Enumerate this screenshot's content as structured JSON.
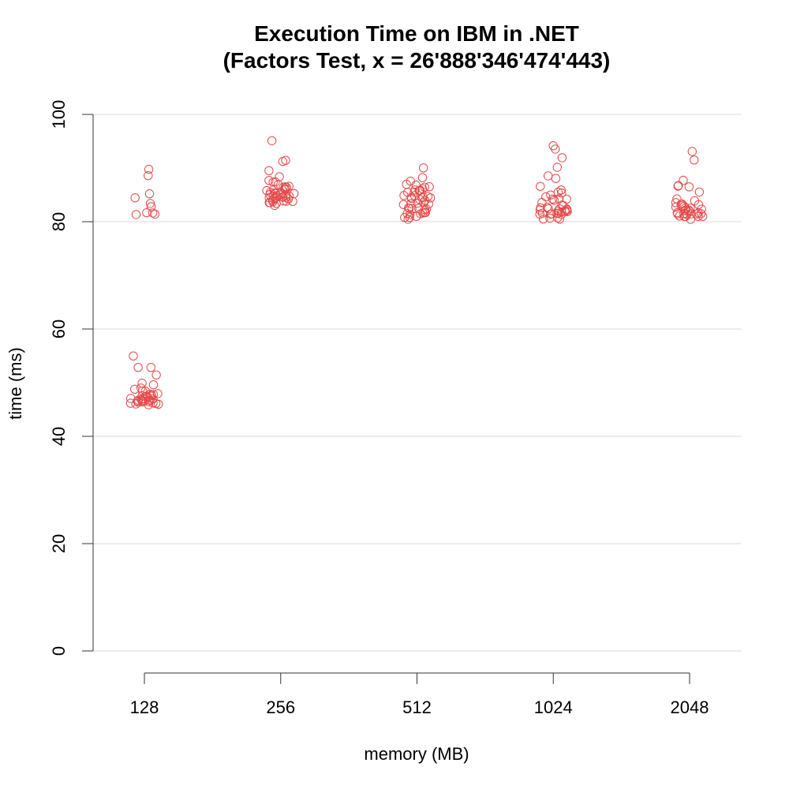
{
  "chart_data": {
    "type": "scatter",
    "title": "Execution Time on IBM in .NET",
    "subtitle": "(Factors Test, x = 26'888'346'474'443)",
    "xlabel": "memory (MB)",
    "ylabel": "time (ms)",
    "categories": [
      "128",
      "256",
      "512",
      "1024",
      "2048"
    ],
    "ylim": [
      0,
      100
    ],
    "yticks": [
      0,
      20,
      40,
      60,
      80,
      100
    ],
    "grid": true,
    "point_color": "#e34a4a",
    "series": [
      {
        "category": "128",
        "values": [
          90,
          88,
          85,
          84,
          83,
          83,
          82,
          82,
          81,
          81,
          55,
          53,
          53,
          51,
          50,
          50,
          49,
          49,
          48,
          48,
          48,
          48,
          48,
          48,
          48,
          48,
          47,
          47,
          47,
          47,
          47,
          47,
          47,
          47,
          47,
          47,
          47,
          47,
          47,
          47,
          46,
          46,
          46,
          46,
          46,
          46,
          46,
          46
        ]
      },
      {
        "category": "256",
        "values": [
          95,
          91,
          91,
          89,
          88,
          88,
          87,
          87,
          87,
          86,
          86,
          86,
          86,
          86,
          86,
          86,
          86,
          86,
          85,
          85,
          85,
          85,
          85,
          85,
          85,
          85,
          85,
          85,
          85,
          85,
          84,
          84,
          84,
          84,
          84,
          84,
          84,
          84,
          84,
          84,
          84,
          84,
          84,
          84,
          83
        ]
      },
      {
        "category": "512",
        "values": [
          90,
          88,
          88,
          87,
          87,
          87,
          86,
          86,
          86,
          86,
          86,
          86,
          85,
          85,
          85,
          85,
          85,
          85,
          84,
          84,
          84,
          84,
          84,
          84,
          83,
          83,
          83,
          83,
          83,
          83,
          83,
          82,
          82,
          82,
          82,
          82,
          82,
          82,
          82,
          81,
          81,
          81,
          81,
          81,
          81
        ]
      },
      {
        "category": "1024",
        "values": [
          94,
          94,
          92,
          90,
          89,
          88,
          86,
          86,
          85,
          85,
          85,
          85,
          84,
          84,
          84,
          84,
          83,
          83,
          83,
          83,
          83,
          83,
          82,
          82,
          82,
          82,
          82,
          82,
          82,
          82,
          82,
          82,
          82,
          82,
          81,
          81,
          81,
          81,
          81,
          81,
          81,
          81
        ]
      },
      {
        "category": "2048",
        "values": [
          93,
          92,
          88,
          87,
          87,
          86,
          86,
          84,
          84,
          84,
          83,
          83,
          83,
          83,
          83,
          83,
          82,
          82,
          82,
          82,
          82,
          82,
          82,
          82,
          82,
          82,
          82,
          82,
          81,
          81,
          81,
          81,
          81,
          81,
          81,
          81,
          81
        ]
      }
    ]
  }
}
